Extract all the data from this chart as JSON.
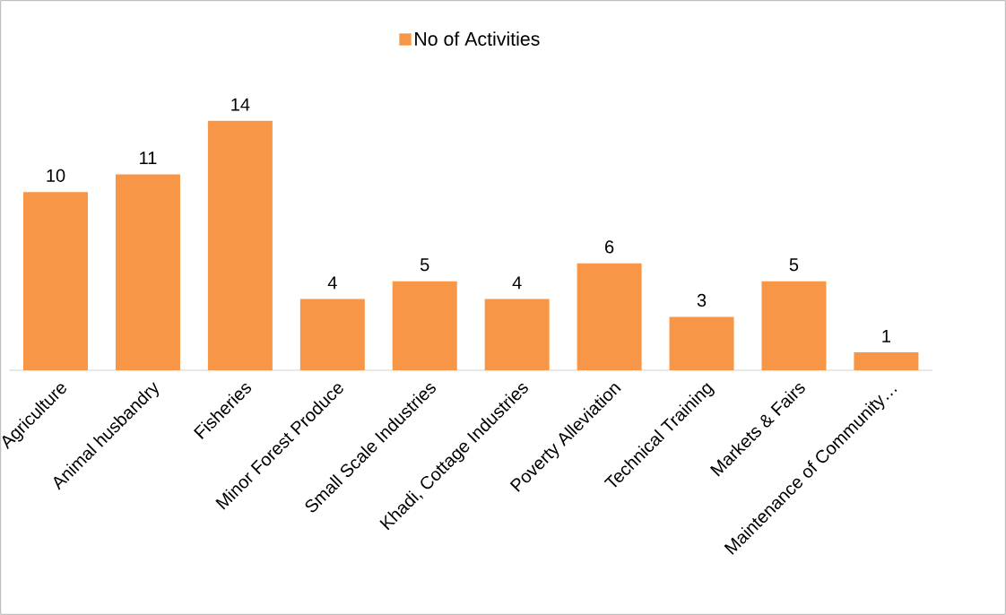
{
  "chart_data": {
    "type": "bar",
    "categories": [
      "Agriculture",
      "Animal husbandry",
      "Fisheries",
      "Minor Forest Produce",
      "Small Scale Industries",
      "Khadi,  Cottage Industries",
      "Poverty Alleviation",
      "Technical Training",
      "Markets & Fairs",
      "Maintenance of Community…"
    ],
    "series": [
      {
        "name": "No of Activities",
        "color": "#f79646",
        "values": [
          10,
          11,
          14,
          4,
          5,
          4,
          6,
          3,
          5,
          1
        ]
      }
    ],
    "data_labels": true,
    "legend": "top"
  }
}
